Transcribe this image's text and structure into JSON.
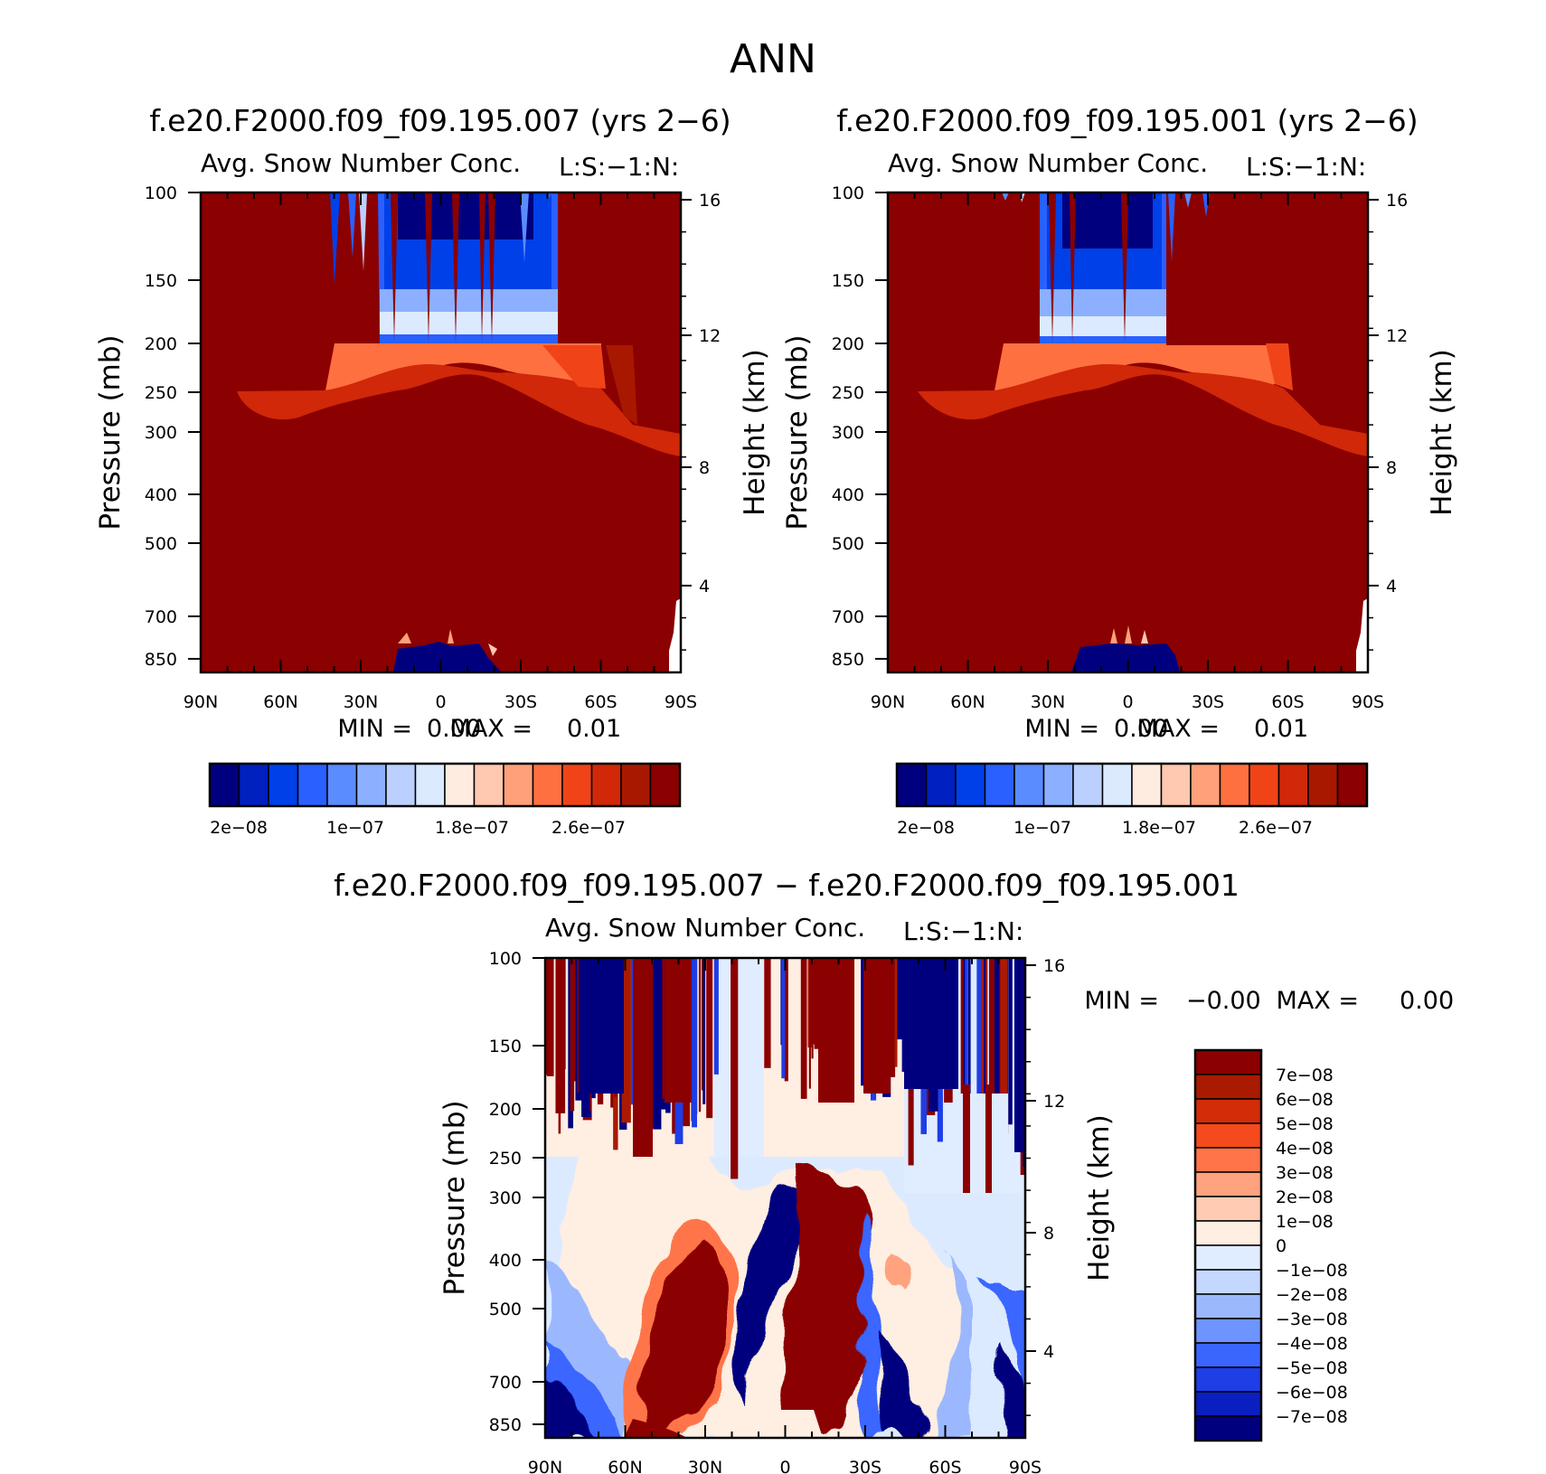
{
  "figure": {
    "title": "ANN"
  },
  "palettes": {
    "abs": [
      "#00007f",
      "#0020c0",
      "#0040e8",
      "#2a60ff",
      "#5a8cff",
      "#8cb0ff",
      "#bcd0ff",
      "#dceaff",
      "#ffece0",
      "#ffc8b0",
      "#ffa07a",
      "#ff7040",
      "#f04418",
      "#d02808",
      "#a81800",
      "#8b0000"
    ],
    "diff": [
      "#00007f",
      "#0a1fc0",
      "#1e3ee6",
      "#3a66ff",
      "#6e94ff",
      "#9bb8ff",
      "#c4d8ff",
      "#e0ecff",
      "#ffeee2",
      "#ffcbb2",
      "#ffa27e",
      "#ff7448",
      "#f44a1c",
      "#d22c08",
      "#aa1a00",
      "#8b0000"
    ]
  },
  "chart_data": [
    {
      "type": "heatmap",
      "title": "f.e20.F2000.f09_f09.195.007 (yrs 2−6)",
      "subtitle_left": "Avg. Snow Number Conc.",
      "subtitle_right": "L:S:−1:N:",
      "xlabel": "",
      "ylabel": "Pressure (mb)",
      "y2label": "Height (km)",
      "x_ticks": [
        "90N",
        "60N",
        "30N",
        "0",
        "30S",
        "60S",
        "90S"
      ],
      "y_ticks": [
        "100",
        "150",
        "200",
        "250",
        "300",
        "400",
        "500",
        "700",
        "850"
      ],
      "y2_ticks": [
        "16",
        "12",
        "8",
        "4"
      ],
      "min_label": "MIN =",
      "min_value": "0.00",
      "max_label": "MAX =",
      "max_value": "0.01",
      "colorbar_labels": [
        "2e−08",
        "1e−07",
        "1.8e−07",
        "2.6e−07"
      ]
    },
    {
      "type": "heatmap",
      "title": "f.e20.F2000.f09_f09.195.001 (yrs 2−6)",
      "subtitle_left": "Avg. Snow Number Conc.",
      "subtitle_right": "L:S:−1:N:",
      "xlabel": "",
      "ylabel": "Pressure (mb)",
      "y2label": "Height (km)",
      "x_ticks": [
        "90N",
        "60N",
        "30N",
        "0",
        "30S",
        "60S",
        "90S"
      ],
      "y_ticks": [
        "100",
        "150",
        "200",
        "250",
        "300",
        "400",
        "500",
        "700",
        "850"
      ],
      "y2_ticks": [
        "16",
        "12",
        "8",
        "4"
      ],
      "min_label": "MIN =",
      "min_value": "0.00",
      "max_label": "MAX =",
      "max_value": "0.01",
      "colorbar_labels": [
        "2e−08",
        "1e−07",
        "1.8e−07",
        "2.6e−07"
      ]
    },
    {
      "type": "heatmap",
      "title": "f.e20.F2000.f09_f09.195.007 − f.e20.F2000.f09_f09.195.001",
      "subtitle_left": "Avg. Snow Number Conc.",
      "subtitle_right": "L:S:−1:N:",
      "xlabel": "",
      "ylabel": "Pressure (mb)",
      "y2label": "Height (km)",
      "x_ticks": [
        "90N",
        "60N",
        "30N",
        "0",
        "30S",
        "60S",
        "90S"
      ],
      "y_ticks": [
        "100",
        "150",
        "200",
        "250",
        "300",
        "400",
        "500",
        "700",
        "850"
      ],
      "y2_ticks": [
        "16",
        "12",
        "8",
        "4"
      ],
      "min_label": "MIN =",
      "min_value": "−0.00",
      "max_label": "MAX =",
      "max_value": "0.00",
      "colorbar_labels": [
        "7e−08",
        "6e−08",
        "5e−08",
        "4e−08",
        "3e−08",
        "2e−08",
        "1e−08",
        "0",
        "−1e−08",
        "−2e−08",
        "−3e−08",
        "−4e−08",
        "−5e−08",
        "−6e−08",
        "−7e−08"
      ]
    }
  ]
}
